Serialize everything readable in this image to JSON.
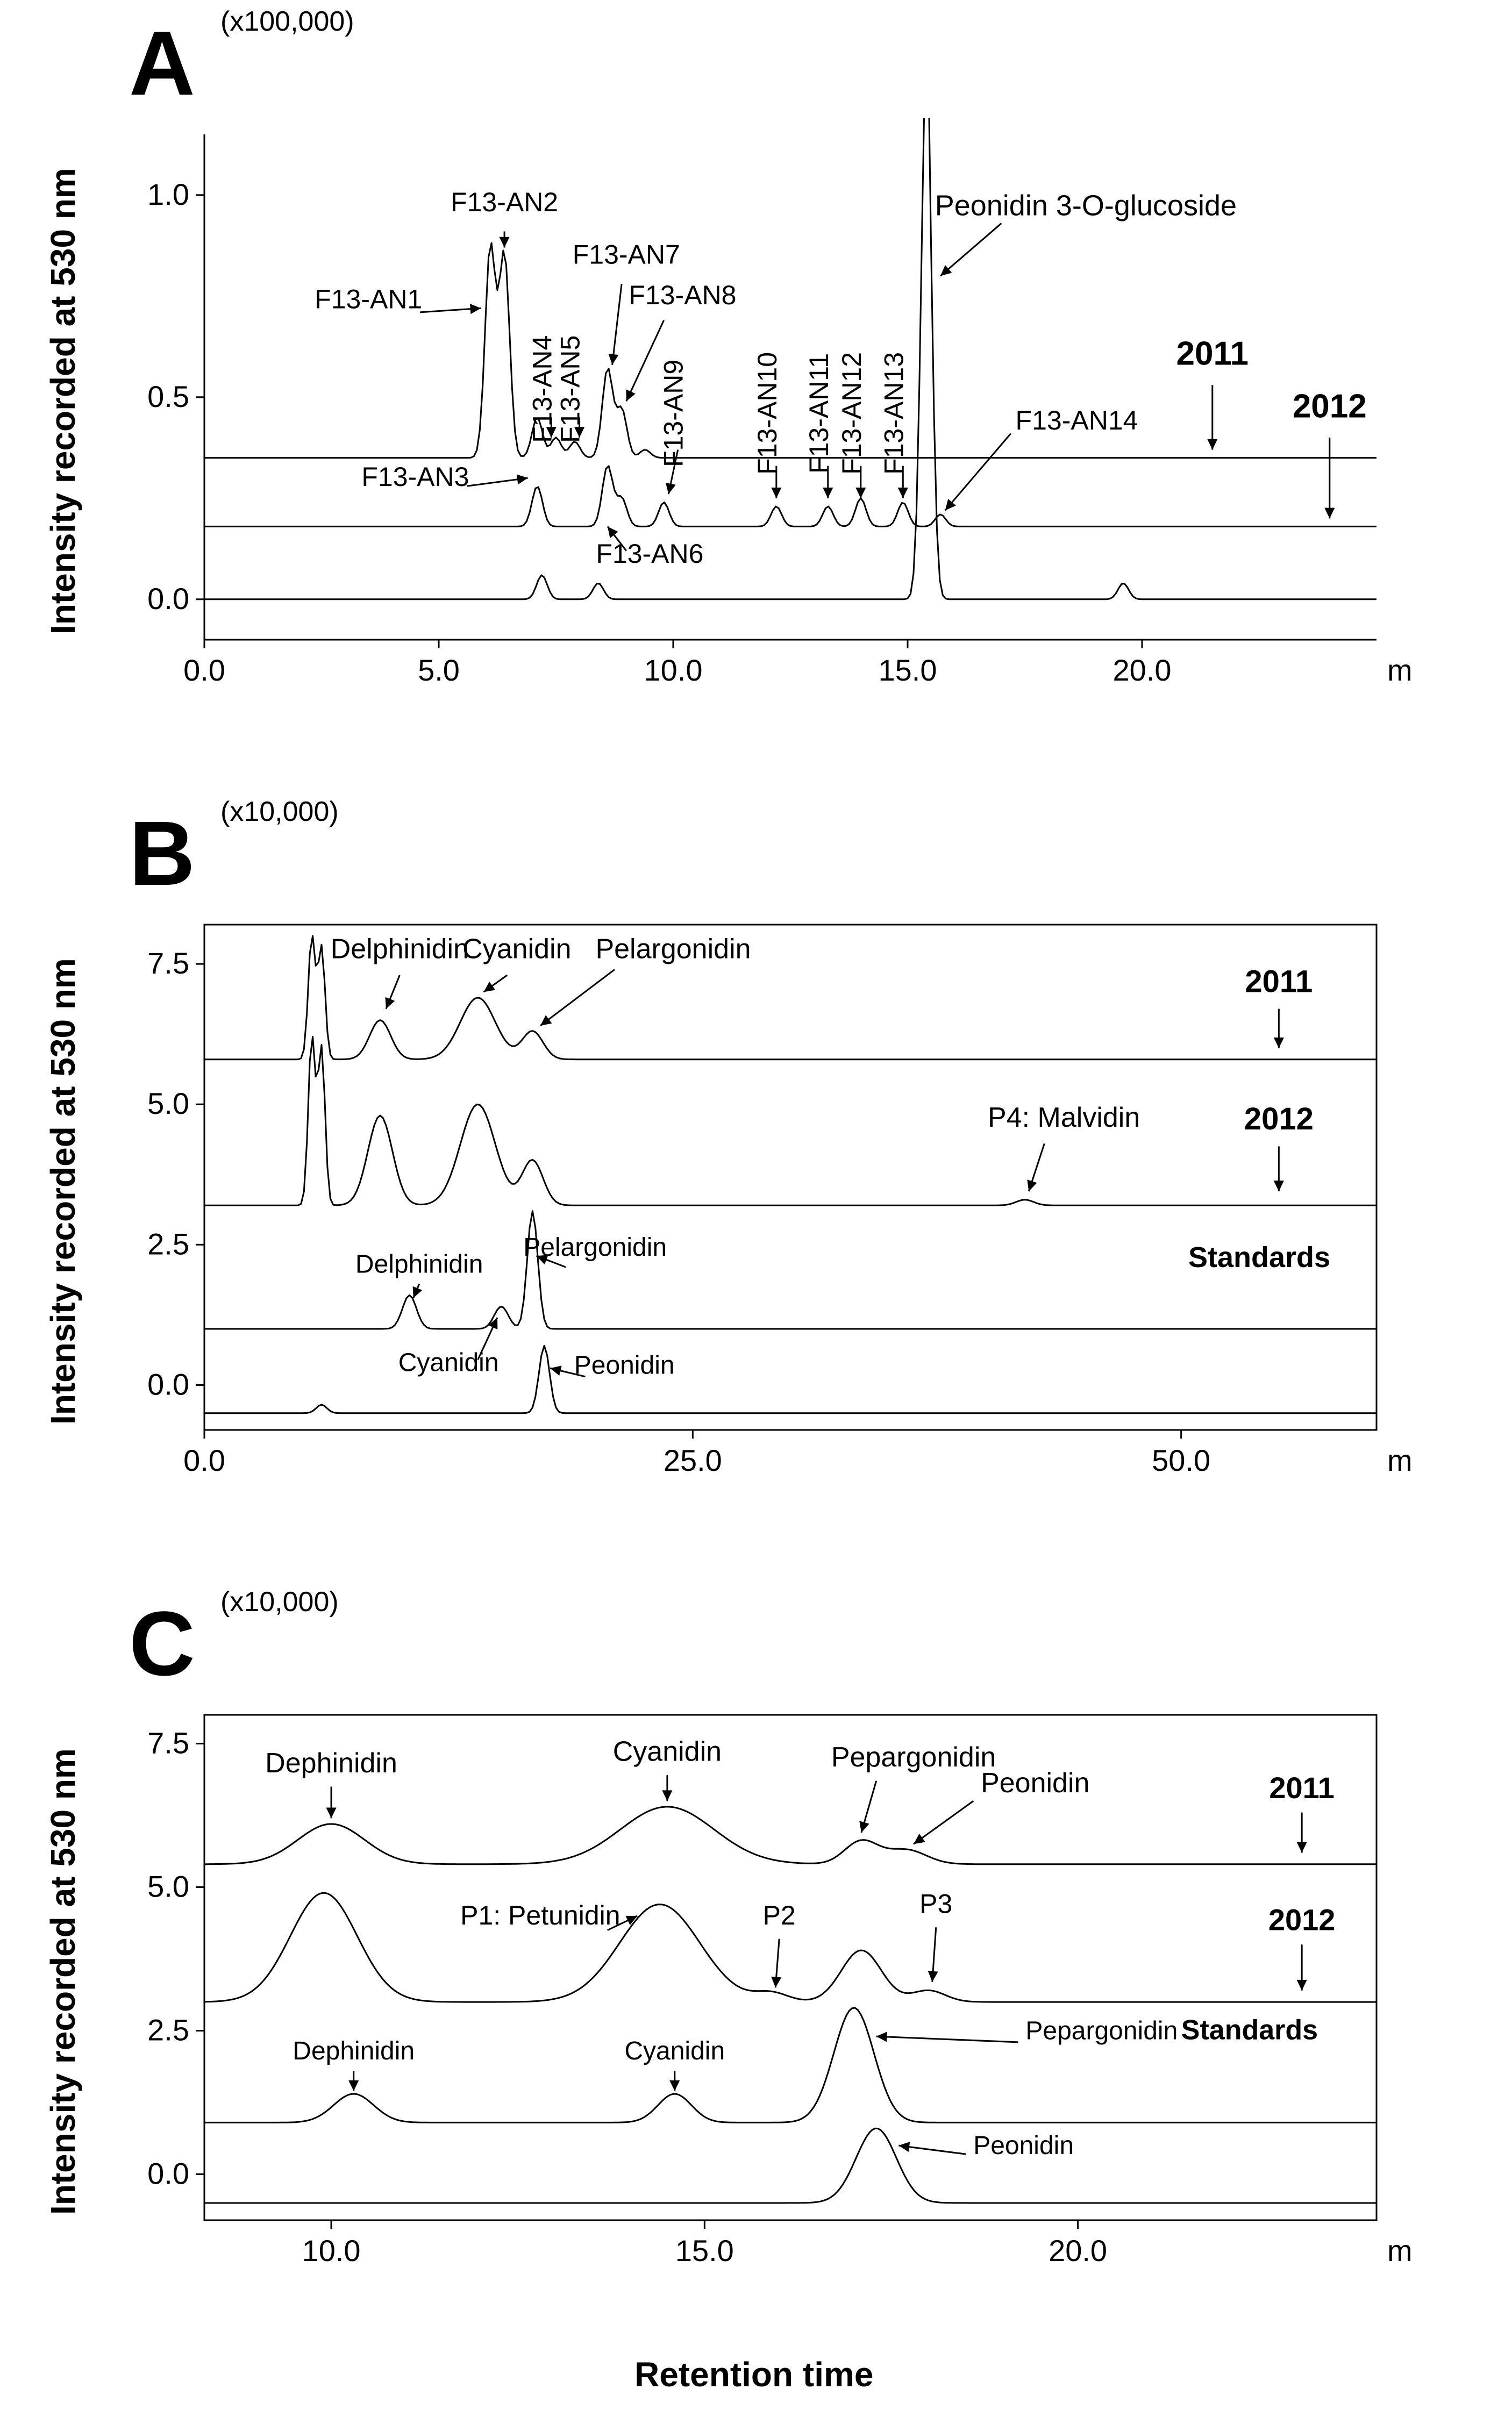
{
  "global": {
    "ylabel": "Intensity recorded at 530 nm",
    "xlabel": "Retention time",
    "line_color": "#000000",
    "background_color": "#ffffff",
    "axis_stroke_width": 3,
    "trace_stroke_width": 3,
    "font_family": "Arial",
    "font_size_axis": 56,
    "font_size_label": 56,
    "font_size_bold": 68,
    "font_size_letter": 170
  },
  "panelA": {
    "letter": "A",
    "multiplier": "(x100,000)",
    "yticks": [
      0.0,
      0.5,
      1.0
    ],
    "ytick_labels": [
      "0.0",
      "0.5",
      "1.0"
    ],
    "xticks": [
      0.0,
      5.0,
      10.0,
      15.0,
      20.0
    ],
    "xtick_labels": [
      "0.0",
      "5.0",
      "10.0",
      "15.0",
      "20.0"
    ],
    "x_unit": "min",
    "xlim": [
      0.0,
      25.0
    ],
    "ylim": [
      -0.1,
      1.15
    ],
    "peak_labels": [
      "F13-AN1",
      "F13-AN2",
      "F13-AN3",
      "F13-AN4",
      "F13-AN5",
      "F13-AN6",
      "F13-AN7",
      "F13-AN8",
      "F13-AN9",
      "F13-AN10",
      "F13-AN11",
      "F13-AN12",
      "F13-AN13",
      "F13-AN14",
      "Peonidin 3-O-glucoside"
    ],
    "trace_labels": [
      "2011",
      "2012"
    ],
    "traces": {
      "2011_row": {
        "offset": 0.35,
        "peaks": [
          {
            "rt": 6.1,
            "h": 0.52
          },
          {
            "rt": 6.4,
            "h": 0.5
          },
          {
            "rt": 7.1,
            "h": 0.1
          },
          {
            "rt": 7.5,
            "h": 0.05
          },
          {
            "rt": 7.9,
            "h": 0.04
          },
          {
            "rt": 8.6,
            "h": 0.22
          },
          {
            "rt": 8.9,
            "h": 0.12
          },
          {
            "rt": 9.4,
            "h": 0.02
          }
        ]
      },
      "2012_row": {
        "offset": 0.18,
        "peaks": [
          {
            "rt": 7.1,
            "h": 0.1
          },
          {
            "rt": 8.6,
            "h": 0.15
          },
          {
            "rt": 8.9,
            "h": 0.07
          },
          {
            "rt": 9.8,
            "h": 0.06
          },
          {
            "rt": 12.2,
            "h": 0.05
          },
          {
            "rt": 13.3,
            "h": 0.05
          },
          {
            "rt": 14.0,
            "h": 0.07
          },
          {
            "rt": 14.9,
            "h": 0.06
          },
          {
            "rt": 15.7,
            "h": 0.03
          }
        ]
      },
      "std_row": {
        "offset": 0.0,
        "peaks": [
          {
            "rt": 7.2,
            "h": 0.06
          },
          {
            "rt": 8.4,
            "h": 0.04
          },
          {
            "rt": 15.4,
            "h": 1.3
          },
          {
            "rt": 19.6,
            "h": 0.04
          }
        ]
      }
    }
  },
  "panelB": {
    "letter": "B",
    "multiplier": "(x10,000)",
    "yticks": [
      0.0,
      2.5,
      5.0,
      7.5
    ],
    "ytick_labels": [
      "0.0",
      "2.5",
      "5.0",
      "7.5"
    ],
    "xticks": [
      0.0,
      25.0,
      50.0
    ],
    "xtick_labels": [
      "0.0",
      "25.0",
      "50.0"
    ],
    "x_unit": "min",
    "xlim": [
      0.0,
      60.0
    ],
    "ylim": [
      -0.8,
      8.2
    ],
    "peak_labels": [
      "Delphinidin",
      "Cyanidin",
      "Pelargonidin",
      "Peonidin",
      "P4: Malvidin"
    ],
    "trace_labels": [
      "2011",
      "2012",
      "Standards"
    ],
    "traces": {
      "2011": {
        "offset": 5.8,
        "peaks": [
          {
            "rt": 5.5,
            "h": 2.2,
            "w": 0.4
          },
          {
            "rt": 6.0,
            "h": 2.0,
            "w": 0.4
          },
          {
            "rt": 9.0,
            "h": 0.7,
            "w": 1.2
          },
          {
            "rt": 14.0,
            "h": 1.1,
            "w": 2.0
          },
          {
            "rt": 16.8,
            "h": 0.5,
            "w": 1.2
          }
        ]
      },
      "2012": {
        "offset": 3.2,
        "peaks": [
          {
            "rt": 5.5,
            "h": 3.0,
            "w": 0.4
          },
          {
            "rt": 6.0,
            "h": 2.8,
            "w": 0.4
          },
          {
            "rt": 9.0,
            "h": 1.6,
            "w": 1.4
          },
          {
            "rt": 14.0,
            "h": 1.8,
            "w": 2.0
          },
          {
            "rt": 16.8,
            "h": 0.8,
            "w": 1.2
          },
          {
            "rt": 42.0,
            "h": 0.1,
            "w": 1.0
          }
        ]
      },
      "std1": {
        "offset": 1.0,
        "peaks": [
          {
            "rt": 10.5,
            "h": 0.6,
            "w": 0.8
          },
          {
            "rt": 15.2,
            "h": 0.4,
            "w": 0.8
          },
          {
            "rt": 16.8,
            "h": 2.1,
            "w": 0.6
          }
        ]
      },
      "std2": {
        "offset": -0.5,
        "peaks": [
          {
            "rt": 6.0,
            "h": 0.15,
            "w": 0.6
          },
          {
            "rt": 17.4,
            "h": 1.2,
            "w": 0.6
          }
        ]
      }
    }
  },
  "panelC": {
    "letter": "C",
    "multiplier": "(x10,000)",
    "yticks": [
      0.0,
      2.5,
      5.0,
      7.5
    ],
    "ytick_labels": [
      "0.0",
      "2.5",
      "5.0",
      "7.5"
    ],
    "xticks": [
      10.0,
      15.0,
      20.0
    ],
    "xtick_labels": [
      "10.0",
      "15.0",
      "20.0"
    ],
    "x_unit": "min",
    "xlim": [
      8.3,
      24.0
    ],
    "ylim": [
      -0.8,
      8.0
    ],
    "peak_labels": [
      "Dephinidin",
      "Cyanidin",
      "Pepargonidin",
      "Peonidin",
      "P1: Petunidin",
      "P2",
      "P3"
    ],
    "trace_labels": [
      "2011",
      "2012",
      "Standards"
    ],
    "traces": {
      "2011": {
        "offset": 5.4,
        "peaks": [
          {
            "rt": 10.0,
            "h": 0.7,
            "w": 1.0
          },
          {
            "rt": 14.5,
            "h": 1.0,
            "w": 1.4
          },
          {
            "rt": 17.1,
            "h": 0.4,
            "w": 0.5
          },
          {
            "rt": 17.7,
            "h": 0.25,
            "w": 0.6
          }
        ]
      },
      "2012": {
        "offset": 3.0,
        "peaks": [
          {
            "rt": 9.9,
            "h": 1.9,
            "w": 1.0
          },
          {
            "rt": 14.4,
            "h": 1.7,
            "w": 1.2
          },
          {
            "rt": 15.9,
            "h": 0.15,
            "w": 0.5
          },
          {
            "rt": 17.1,
            "h": 0.9,
            "w": 0.6
          },
          {
            "rt": 18.0,
            "h": 0.2,
            "w": 0.5
          }
        ]
      },
      "std1": {
        "offset": 0.9,
        "peaks": [
          {
            "rt": 10.3,
            "h": 0.5,
            "w": 0.6
          },
          {
            "rt": 14.6,
            "h": 0.5,
            "w": 0.5
          },
          {
            "rt": 17.0,
            "h": 2.0,
            "w": 0.6
          }
        ]
      },
      "std2": {
        "offset": -0.5,
        "peaks": [
          {
            "rt": 17.3,
            "h": 1.3,
            "w": 0.6
          }
        ]
      }
    }
  }
}
